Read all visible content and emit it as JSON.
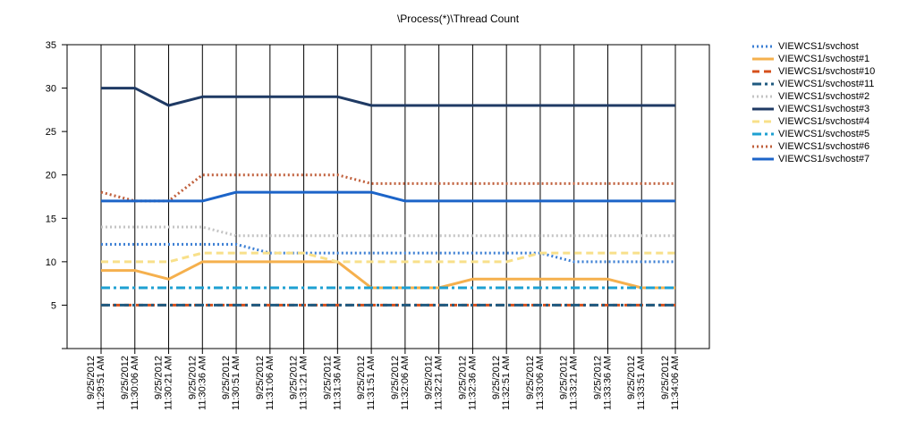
{
  "chart_data": {
    "type": "line",
    "title": "\\Process(*)\\Thread Count",
    "ylim": [
      0,
      35
    ],
    "yticks": [
      5,
      10,
      15,
      20,
      25,
      30,
      35
    ],
    "grid": "vertical",
    "legend_position": "right",
    "x": [
      "9/25/2012 11:29:51 AM",
      "9/25/2012 11:30:06 AM",
      "9/25/2012 11:30:21 AM",
      "9/25/2012 11:30:36 AM",
      "9/25/2012 11:30:51 AM",
      "9/25/2012 11:31:06 AM",
      "9/25/2012 11:31:21 AM",
      "9/25/2012 11:31:36 AM",
      "9/25/2012 11:31:51 AM",
      "9/25/2012 11:32:06 AM",
      "9/25/2012 11:32:21 AM",
      "9/25/2012 11:32:36 AM",
      "9/25/2012 11:32:51 AM",
      "9/25/2012 11:33:06 AM",
      "9/25/2012 11:33:21 AM",
      "9/25/2012 11:33:36 AM",
      "9/25/2012 11:33:51 AM",
      "9/25/2012 11:34:06 AM"
    ],
    "series": [
      {
        "name": "VIEWCS1/svchost",
        "color": "#3c7fd4",
        "dash": "dotted",
        "values": [
          12,
          12,
          12,
          12,
          12,
          11,
          11,
          11,
          11,
          11,
          11,
          11,
          11,
          11,
          10,
          10,
          10,
          10
        ]
      },
      {
        "name": "VIEWCS1/svchost#1",
        "color": "#f5b04d",
        "dash": "solid",
        "values": [
          9,
          9,
          8,
          10,
          10,
          10,
          10,
          10,
          7,
          7,
          7,
          8,
          8,
          8,
          8,
          8,
          7,
          7
        ]
      },
      {
        "name": "VIEWCS1/svchost#10",
        "color": "#d6501c",
        "dash": "dashed",
        "values": [
          5,
          5,
          5,
          5,
          5,
          5,
          5,
          5,
          5,
          5,
          5,
          5,
          5,
          5,
          5,
          5,
          5,
          5
        ]
      },
      {
        "name": "VIEWCS1/svchost#11",
        "color": "#1f5a80",
        "dash": "dashdot",
        "values": [
          5,
          5,
          5,
          5,
          5,
          5,
          5,
          5,
          5,
          5,
          5,
          5,
          5,
          5,
          5,
          5,
          5,
          5
        ]
      },
      {
        "name": "VIEWCS1/svchost#2",
        "color": "#c4c4c4",
        "dash": "dotted",
        "values": [
          14,
          14,
          14,
          14,
          13,
          13,
          13,
          13,
          13,
          13,
          13,
          13,
          13,
          13,
          13,
          13,
          13,
          13
        ]
      },
      {
        "name": "VIEWCS1/svchost#3",
        "color": "#1f3a64",
        "dash": "solid",
        "values": [
          30,
          30,
          28,
          29,
          29,
          29,
          29,
          29,
          28,
          28,
          28,
          28,
          28,
          28,
          28,
          28,
          28,
          28
        ]
      },
      {
        "name": "VIEWCS1/svchost#4",
        "color": "#f8e08a",
        "dash": "dashed",
        "values": [
          10,
          10,
          10,
          11,
          11,
          11,
          11,
          10,
          10,
          10,
          10,
          10,
          10,
          11,
          11,
          11,
          11,
          11
        ]
      },
      {
        "name": "VIEWCS1/svchost#5",
        "color": "#1ea0d2",
        "dash": "dashdot",
        "values": [
          7,
          7,
          7,
          7,
          7,
          7,
          7,
          7,
          7,
          7,
          7,
          7,
          7,
          7,
          7,
          7,
          7,
          7
        ]
      },
      {
        "name": "VIEWCS1/svchost#6",
        "color": "#c0603c",
        "dash": "dotted",
        "values": [
          18,
          17,
          17,
          20,
          20,
          20,
          20,
          20,
          19,
          19,
          19,
          19,
          19,
          19,
          19,
          19,
          19,
          19
        ]
      },
      {
        "name": "VIEWCS1/svchost#7",
        "color": "#1c64c8",
        "dash": "solid",
        "values": [
          17,
          17,
          17,
          17,
          18,
          18,
          18,
          18,
          18,
          17,
          17,
          17,
          17,
          17,
          17,
          17,
          17,
          17
        ]
      }
    ]
  }
}
